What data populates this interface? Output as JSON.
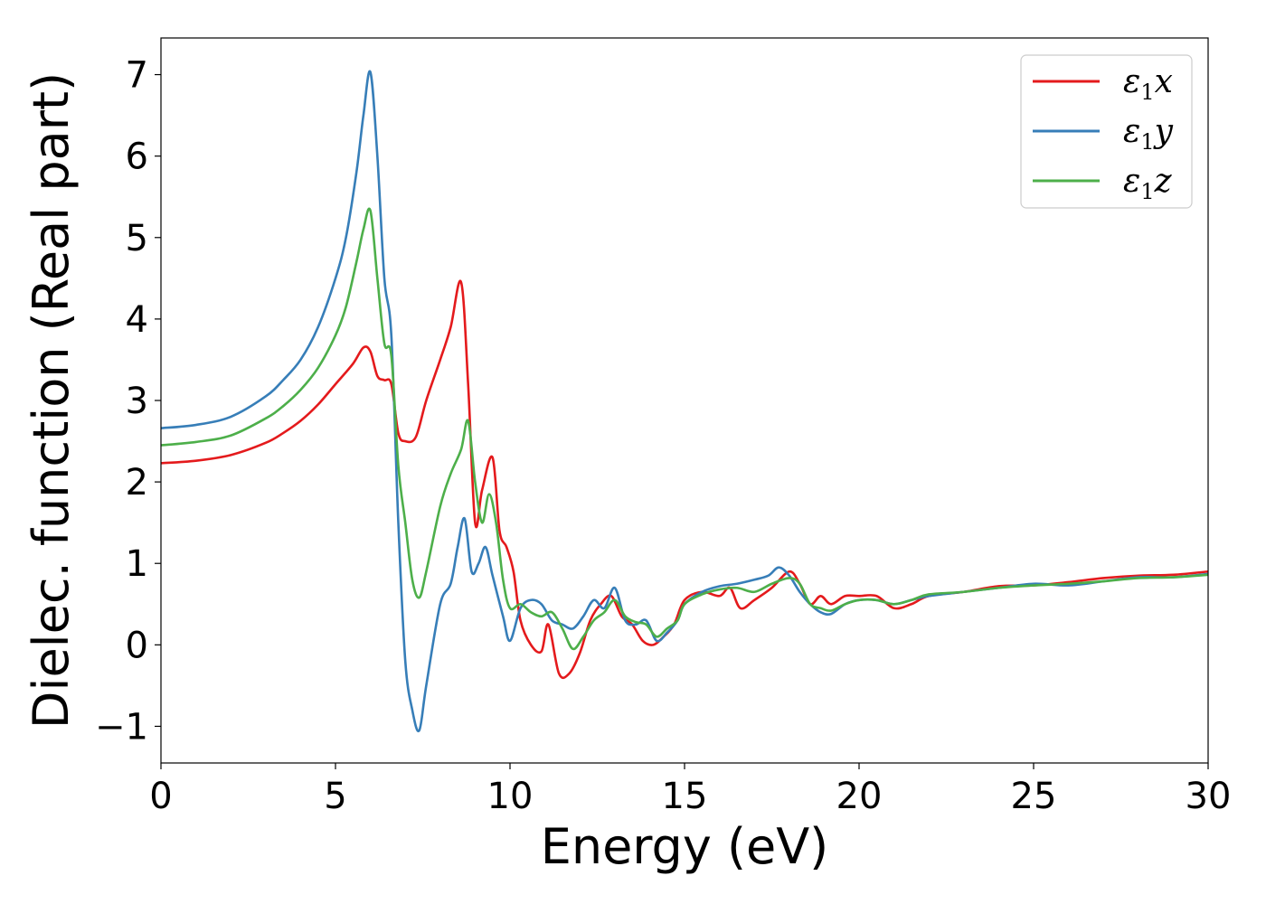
{
  "chart_data": {
    "type": "line",
    "title": "",
    "xlabel": "Energy (eV)",
    "ylabel": "Dielec. function (Real part)",
    "xlim": [
      0,
      30
    ],
    "ylim": [
      -1.45,
      7.45
    ],
    "xticks": [
      0,
      5,
      10,
      15,
      20,
      25,
      30
    ],
    "xtick_labels": [
      "0",
      "5",
      "10",
      "15",
      "20",
      "25",
      "30"
    ],
    "yticks": [
      -1,
      0,
      1,
      2,
      3,
      4,
      5,
      6,
      7
    ],
    "ytick_labels": [
      "−1",
      "0",
      "1",
      "2",
      "3",
      "4",
      "5",
      "6",
      "7"
    ],
    "grid": false,
    "legend_position": "top-right",
    "series": [
      {
        "name": "ε1x",
        "legend": {
          "base": "ε",
          "sub": "1",
          "tail": "x"
        },
        "color": "#e41a1c",
        "x": [
          0,
          1,
          2,
          3,
          3.5,
          4,
          4.5,
          5,
          5.5,
          5.8,
          6.0,
          6.2,
          6.4,
          6.6,
          6.8,
          7.0,
          7.3,
          7.6,
          8.0,
          8.3,
          8.6,
          8.8,
          9.0,
          9.2,
          9.5,
          9.7,
          9.9,
          10.1,
          10.3,
          10.6,
          10.9,
          11.1,
          11.4,
          11.7,
          12.0,
          12.3,
          12.6,
          12.9,
          13.2,
          13.5,
          13.8,
          14.1,
          14.4,
          14.7,
          15.0,
          15.5,
          16.0,
          16.3,
          16.6,
          17.0,
          17.5,
          18.0,
          18.3,
          18.6,
          18.9,
          19.2,
          19.6,
          20.0,
          20.5,
          21.0,
          21.5,
          22.0,
          23.0,
          24.0,
          25.0,
          26.0,
          27.0,
          28.0,
          29.0,
          30.0
        ],
        "y": [
          2.23,
          2.26,
          2.33,
          2.48,
          2.6,
          2.75,
          2.95,
          3.2,
          3.45,
          3.65,
          3.6,
          3.3,
          3.25,
          3.2,
          2.6,
          2.5,
          2.55,
          3.0,
          3.5,
          3.9,
          4.45,
          3.2,
          1.5,
          1.9,
          2.3,
          1.4,
          1.2,
          0.9,
          0.3,
          0.0,
          -0.08,
          0.25,
          -0.35,
          -0.35,
          -0.1,
          0.3,
          0.5,
          0.6,
          0.35,
          0.25,
          0.05,
          0.0,
          0.1,
          0.25,
          0.55,
          0.65,
          0.6,
          0.7,
          0.45,
          0.55,
          0.7,
          0.9,
          0.75,
          0.5,
          0.6,
          0.5,
          0.6,
          0.6,
          0.6,
          0.45,
          0.5,
          0.6,
          0.65,
          0.72,
          0.73,
          0.77,
          0.82,
          0.85,
          0.86,
          0.9
        ]
      },
      {
        "name": "ε1y",
        "legend": {
          "base": "ε",
          "sub": "1",
          "tail": "y"
        },
        "color": "#377eb8",
        "x": [
          0,
          1,
          2,
          3,
          3.5,
          4,
          4.5,
          5,
          5.3,
          5.6,
          5.8,
          6.0,
          6.2,
          6.4,
          6.6,
          6.8,
          7.0,
          7.2,
          7.4,
          7.6,
          8.0,
          8.3,
          8.5,
          8.7,
          8.9,
          9.1,
          9.3,
          9.5,
          9.8,
          10.0,
          10.3,
          10.6,
          10.9,
          11.2,
          11.5,
          11.8,
          12.1,
          12.4,
          12.7,
          13.0,
          13.3,
          13.6,
          13.9,
          14.2,
          14.5,
          14.8,
          15.0,
          15.5,
          16.0,
          16.5,
          17.0,
          17.4,
          17.7,
          18.0,
          18.3,
          18.6,
          18.9,
          19.2,
          19.6,
          20.0,
          20.5,
          21.0,
          21.5,
          22.0,
          23.0,
          24.0,
          25.0,
          26.0,
          27.0,
          28.0,
          29.0,
          30.0
        ],
        "y": [
          2.66,
          2.7,
          2.8,
          3.05,
          3.25,
          3.5,
          3.9,
          4.5,
          5.0,
          5.8,
          6.5,
          7.03,
          6.0,
          4.5,
          3.8,
          1.5,
          -0.2,
          -0.8,
          -1.05,
          -0.5,
          0.5,
          0.75,
          1.2,
          1.55,
          0.9,
          1.0,
          1.2,
          0.85,
          0.35,
          0.05,
          0.45,
          0.55,
          0.5,
          0.3,
          0.25,
          0.2,
          0.35,
          0.55,
          0.45,
          0.7,
          0.3,
          0.25,
          0.3,
          0.05,
          0.15,
          0.3,
          0.5,
          0.65,
          0.72,
          0.75,
          0.8,
          0.85,
          0.95,
          0.85,
          0.65,
          0.5,
          0.4,
          0.38,
          0.5,
          0.55,
          0.55,
          0.5,
          0.55,
          0.6,
          0.65,
          0.7,
          0.75,
          0.73,
          0.78,
          0.83,
          0.83,
          0.87
        ]
      },
      {
        "name": "ε1z",
        "legend": {
          "base": "ε",
          "sub": "1",
          "tail": "z"
        },
        "color": "#4daf4a",
        "x": [
          0,
          1,
          2,
          3,
          3.5,
          4,
          4.5,
          5,
          5.3,
          5.6,
          5.8,
          6.0,
          6.2,
          6.4,
          6.6,
          6.8,
          7.0,
          7.2,
          7.4,
          7.6,
          8.0,
          8.3,
          8.6,
          8.8,
          9.0,
          9.2,
          9.4,
          9.6,
          9.8,
          10.0,
          10.3,
          10.6,
          10.9,
          11.2,
          11.5,
          11.8,
          12.1,
          12.4,
          12.7,
          13.0,
          13.3,
          13.6,
          13.9,
          14.2,
          14.5,
          14.8,
          15.0,
          15.5,
          16.0,
          16.5,
          17.0,
          17.5,
          18.0,
          18.3,
          18.6,
          18.9,
          19.2,
          19.6,
          20.0,
          20.5,
          21.0,
          21.5,
          22.0,
          23.0,
          24.0,
          25.0,
          26.0,
          27.0,
          28.0,
          29.0,
          30.0
        ],
        "y": [
          2.45,
          2.49,
          2.57,
          2.78,
          2.93,
          3.13,
          3.4,
          3.8,
          4.15,
          4.7,
          5.1,
          5.33,
          4.5,
          3.7,
          3.55,
          2.2,
          1.5,
          0.8,
          0.58,
          0.9,
          1.7,
          2.1,
          2.4,
          2.75,
          2.0,
          1.5,
          1.85,
          1.5,
          0.8,
          0.45,
          0.5,
          0.4,
          0.35,
          0.4,
          0.2,
          -0.05,
          0.1,
          0.3,
          0.4,
          0.55,
          0.35,
          0.28,
          0.25,
          0.1,
          0.2,
          0.3,
          0.5,
          0.62,
          0.68,
          0.7,
          0.65,
          0.75,
          0.82,
          0.75,
          0.5,
          0.45,
          0.42,
          0.5,
          0.55,
          0.55,
          0.5,
          0.55,
          0.62,
          0.65,
          0.7,
          0.73,
          0.75,
          0.78,
          0.82,
          0.83,
          0.86
        ]
      }
    ]
  }
}
